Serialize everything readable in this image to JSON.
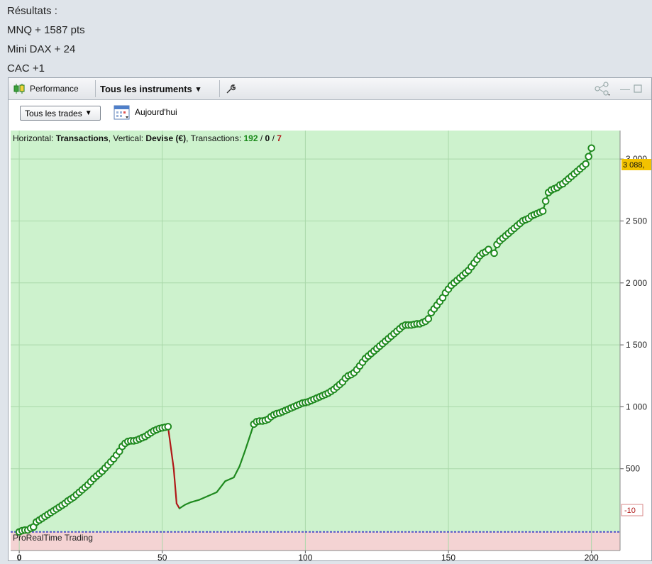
{
  "results": {
    "title": "Résultats :",
    "lines": [
      "MNQ + 1587 pts",
      "Mini DAX + 24",
      "CAC +1"
    ]
  },
  "toolbar": {
    "performance_label": "Performance",
    "instruments_label": "Tous les instruments",
    "dropdown_arrow": "▾",
    "wrench_icon": "wrench-icon",
    "share_icon": "share-icon"
  },
  "subbar": {
    "trades_select": "Tous les trades",
    "date_label": "Aujourd'hui"
  },
  "chart_info": {
    "prefix": "Horizontal: ",
    "h_value": "Transactions",
    "mid": ", Vertical: ",
    "v_value": "Devise (€)",
    "tx_prefix": ", Transactions: ",
    "win": "192",
    "sep1": " / ",
    "neutral": "0",
    "sep2": " / ",
    "loss": "7"
  },
  "watermark": "ProRealTime Trading",
  "price_tag_current": "3 088,",
  "price_tag_zero": "-10",
  "colors": {
    "positive_zone": "#cdf2cd",
    "negative_zone": "#f4d3d3",
    "curve": "#1f8a1f",
    "loss_segment": "#b01818",
    "tag_current": "#f2c200",
    "win_text": "#1a8a1a",
    "loss_text": "#b01818"
  },
  "chart_data": {
    "type": "line",
    "xlabel": "",
    "ylabel": "",
    "xlim": [
      -3,
      210
    ],
    "ylim": [
      -160,
      3230
    ],
    "x_ticks": [
      0,
      50,
      100,
      150,
      200
    ],
    "y_ticks": [
      500,
      1000,
      1500,
      2000,
      2500,
      3000
    ],
    "y_tick_labels": [
      "500",
      "1 000",
      "1 500",
      "2 000",
      "2 500",
      "3 000"
    ],
    "x_tick_labels": [
      "0",
      "50",
      "100",
      "150",
      "200"
    ],
    "zero_line": -10,
    "last_value": 3088,
    "series": [
      {
        "points": [
          [
            0,
            -10
          ],
          [
            1,
            0
          ],
          [
            2,
            5
          ],
          [
            3,
            5
          ],
          [
            4,
            20
          ],
          [
            5,
            30
          ],
          [
            6,
            70
          ],
          [
            7,
            85
          ],
          [
            8,
            100
          ],
          [
            9,
            115
          ],
          [
            10,
            130
          ],
          [
            11,
            145
          ],
          [
            12,
            160
          ],
          [
            13,
            175
          ],
          [
            14,
            190
          ],
          [
            15,
            205
          ],
          [
            16,
            220
          ],
          [
            17,
            240
          ],
          [
            18,
            255
          ],
          [
            19,
            270
          ],
          [
            20,
            290
          ],
          [
            21,
            310
          ],
          [
            22,
            330
          ],
          [
            23,
            350
          ],
          [
            24,
            370
          ],
          [
            25,
            395
          ],
          [
            26,
            420
          ],
          [
            27,
            440
          ],
          [
            28,
            460
          ],
          [
            29,
            480
          ],
          [
            30,
            505
          ],
          [
            31,
            530
          ],
          [
            32,
            555
          ],
          [
            33,
            580
          ],
          [
            34,
            610
          ],
          [
            35,
            640
          ],
          [
            36,
            680
          ],
          [
            37,
            705
          ],
          [
            38,
            720
          ],
          [
            39,
            725
          ],
          [
            40,
            725
          ],
          [
            41,
            730
          ],
          [
            42,
            740
          ],
          [
            43,
            750
          ],
          [
            44,
            760
          ],
          [
            45,
            775
          ],
          [
            46,
            790
          ],
          [
            47,
            805
          ],
          [
            48,
            815
          ],
          [
            49,
            825
          ],
          [
            50,
            830
          ],
          [
            51,
            835
          ],
          [
            52,
            840
          ],
          [
            54,
            500
          ],
          [
            55,
            220
          ],
          [
            56,
            180
          ],
          [
            58,
            210
          ],
          [
            60,
            230
          ],
          [
            63,
            250
          ],
          [
            66,
            280
          ],
          [
            69,
            310
          ],
          [
            72,
            400
          ],
          [
            75,
            430
          ],
          [
            77,
            520
          ],
          [
            79,
            650
          ],
          [
            81,
            790
          ],
          [
            82,
            860
          ],
          [
            83,
            880
          ],
          [
            84,
            885
          ],
          [
            85,
            885
          ],
          [
            86,
            890
          ],
          [
            87,
            900
          ],
          [
            88,
            920
          ],
          [
            89,
            935
          ],
          [
            90,
            945
          ],
          [
            91,
            950
          ],
          [
            92,
            960
          ],
          [
            93,
            970
          ],
          [
            94,
            980
          ],
          [
            95,
            990
          ],
          [
            96,
            1000
          ],
          [
            97,
            1010
          ],
          [
            98,
            1020
          ],
          [
            99,
            1030
          ],
          [
            100,
            1035
          ],
          [
            101,
            1040
          ],
          [
            102,
            1050
          ],
          [
            103,
            1060
          ],
          [
            104,
            1070
          ],
          [
            105,
            1080
          ],
          [
            106,
            1090
          ],
          [
            107,
            1100
          ],
          [
            108,
            1110
          ],
          [
            109,
            1125
          ],
          [
            110,
            1140
          ],
          [
            111,
            1160
          ],
          [
            112,
            1180
          ],
          [
            113,
            1200
          ],
          [
            114,
            1230
          ],
          [
            115,
            1250
          ],
          [
            116,
            1260
          ],
          [
            117,
            1275
          ],
          [
            118,
            1300
          ],
          [
            119,
            1330
          ],
          [
            120,
            1360
          ],
          [
            121,
            1390
          ],
          [
            122,
            1410
          ],
          [
            123,
            1430
          ],
          [
            124,
            1450
          ],
          [
            125,
            1470
          ],
          [
            126,
            1490
          ],
          [
            127,
            1510
          ],
          [
            128,
            1530
          ],
          [
            129,
            1550
          ],
          [
            130,
            1570
          ],
          [
            131,
            1590
          ],
          [
            132,
            1610
          ],
          [
            133,
            1630
          ],
          [
            134,
            1650
          ],
          [
            135,
            1660
          ],
          [
            136,
            1660
          ],
          [
            137,
            1660
          ],
          [
            138,
            1665
          ],
          [
            139,
            1670
          ],
          [
            140,
            1670
          ],
          [
            141,
            1680
          ],
          [
            142,
            1690
          ],
          [
            143,
            1710
          ],
          [
            144,
            1760
          ],
          [
            145,
            1790
          ],
          [
            146,
            1820
          ],
          [
            147,
            1850
          ],
          [
            148,
            1880
          ],
          [
            149,
            1920
          ],
          [
            150,
            1950
          ],
          [
            151,
            1980
          ],
          [
            152,
            2000
          ],
          [
            153,
            2020
          ],
          [
            154,
            2040
          ],
          [
            155,
            2060
          ],
          [
            156,
            2080
          ],
          [
            157,
            2100
          ],
          [
            158,
            2130
          ],
          [
            159,
            2160
          ],
          [
            160,
            2190
          ],
          [
            161,
            2220
          ],
          [
            162,
            2240
          ],
          [
            163,
            2250
          ],
          [
            164,
            2270
          ],
          [
            166,
            2240
          ],
          [
            167,
            2310
          ],
          [
            168,
            2340
          ],
          [
            169,
            2360
          ],
          [
            170,
            2380
          ],
          [
            171,
            2400
          ],
          [
            172,
            2420
          ],
          [
            173,
            2440
          ],
          [
            174,
            2460
          ],
          [
            175,
            2480
          ],
          [
            176,
            2500
          ],
          [
            177,
            2510
          ],
          [
            178,
            2520
          ],
          [
            179,
            2540
          ],
          [
            180,
            2550
          ],
          [
            181,
            2560
          ],
          [
            182,
            2570
          ],
          [
            183,
            2580
          ],
          [
            184,
            2660
          ],
          [
            185,
            2730
          ],
          [
            186,
            2750
          ],
          [
            187,
            2760
          ],
          [
            188,
            2770
          ],
          [
            189,
            2790
          ],
          [
            190,
            2800
          ],
          [
            191,
            2820
          ],
          [
            192,
            2840
          ],
          [
            193,
            2860
          ],
          [
            194,
            2880
          ],
          [
            195,
            2900
          ],
          [
            196,
            2920
          ],
          [
            197,
            2940
          ],
          [
            198,
            2960
          ],
          [
            199,
            3020
          ],
          [
            200,
            3088
          ]
        ]
      }
    ],
    "loss_segments": [
      [
        52,
        56
      ],
      [
        164,
        166
      ]
    ]
  }
}
